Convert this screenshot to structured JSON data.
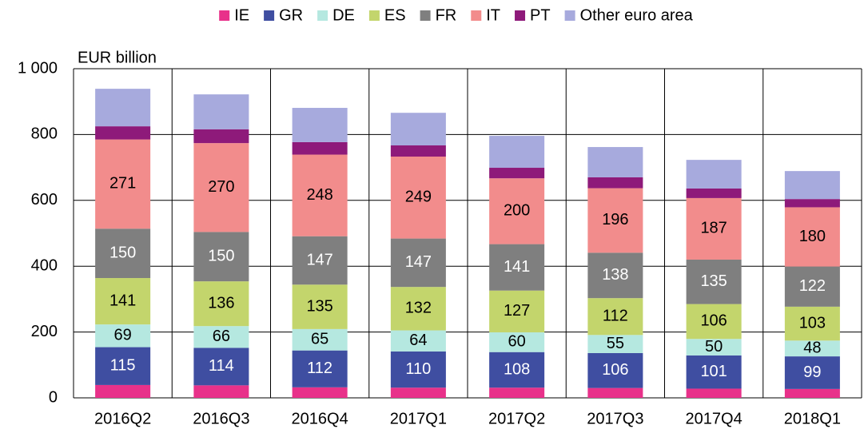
{
  "chart_data": {
    "type": "stacked_bar",
    "y_label": "EUR billion",
    "categories": [
      "2016Q2",
      "2016Q3",
      "2016Q4",
      "2017Q1",
      "2017Q2",
      "2017Q3",
      "2017Q4",
      "2018Q1"
    ],
    "series": [
      {
        "name": "IE",
        "color": "#e8318a",
        "values": [
          39,
          38,
          32,
          31,
          31,
          30,
          28,
          27
        ]
      },
      {
        "name": "GR",
        "color": "#3f4ea1",
        "values": [
          115,
          114,
          112,
          110,
          108,
          106,
          101,
          99
        ],
        "data_labels": true,
        "label_color": "#ffffff"
      },
      {
        "name": "DE",
        "color": "#b5e8e0",
        "values": [
          69,
          66,
          65,
          64,
          60,
          55,
          50,
          48
        ],
        "data_labels": true,
        "label_color": "#000000"
      },
      {
        "name": "ES",
        "color": "#c3d56c",
        "values": [
          141,
          136,
          135,
          132,
          127,
          112,
          106,
          103
        ],
        "data_labels": true,
        "label_color": "#000000"
      },
      {
        "name": "FR",
        "color": "#7f7f7f",
        "values": [
          150,
          150,
          147,
          147,
          141,
          138,
          135,
          122
        ],
        "data_labels": true,
        "label_color": "#ffffff"
      },
      {
        "name": "IT",
        "color": "#f28c8c",
        "values": [
          271,
          270,
          248,
          249,
          200,
          196,
          187,
          180
        ],
        "data_labels": true,
        "label_color": "#000000"
      },
      {
        "name": "PT",
        "color": "#8e1a7a",
        "values": [
          40,
          42,
          38,
          34,
          32,
          33,
          29,
          25
        ]
      },
      {
        "name": "Other euro area",
        "color": "#a7aadd",
        "values": [
          114,
          106,
          104,
          99,
          97,
          92,
          87,
          85
        ]
      }
    ],
    "ylim": [
      0,
      1000
    ],
    "yticks": [
      0,
      200,
      400,
      600,
      800,
      {
        "value": 1000,
        "label": "1 000"
      }
    ],
    "grid": true,
    "legend": "top"
  }
}
